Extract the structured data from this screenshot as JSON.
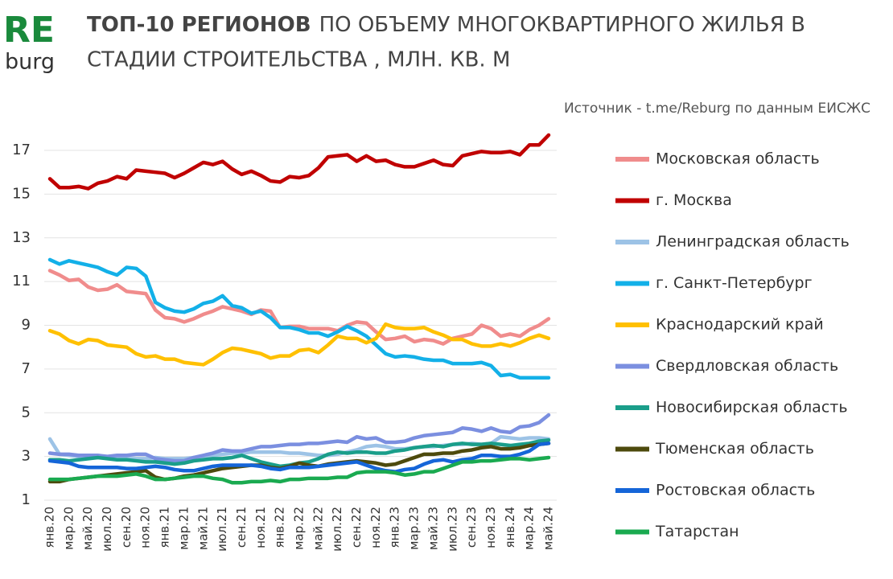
{
  "logo": {
    "top": "RE",
    "bottom": "burg"
  },
  "chart_data": {
    "type": "line",
    "title": [
      "ТОП-10 РЕГИОНОВ",
      "ПО ОБЪЕМУ МНОГОКВАРТИРНОГО ЖИЛЬЯ В",
      "СТАДИИ СТРОИТЕЛЬСТВА , МЛН. КВ. М"
    ],
    "source": "Источник - t.me/Reburg по данным ЕИСЖС",
    "categories": [
      "янв.20",
      null,
      "мар.20",
      null,
      "май.20",
      null,
      "июл.20",
      null,
      "сен.20",
      null,
      "ноя.20",
      null,
      "янв.21",
      null,
      "мар.21",
      null,
      "май.21",
      null,
      "июл.21",
      null,
      "сен.21",
      null,
      "ноя.21",
      null,
      "янв.22",
      null,
      "мар.22",
      null,
      "май.22",
      null,
      "июл.22",
      null,
      "сен.22",
      null,
      "ноя.22",
      null,
      "янв.23",
      null,
      "мар.23",
      null,
      "май.23",
      null,
      "июл.23",
      null,
      "сен.23",
      null,
      "ноя.23",
      null,
      "янв.24",
      null,
      "мар.24",
      null,
      "май.24"
    ],
    "ylim": [
      1,
      18
    ],
    "yticks": [
      1,
      3,
      5,
      7,
      9,
      11,
      13,
      15,
      17
    ],
    "grid": true,
    "legend": "right",
    "series": [
      {
        "name": "Московская область",
        "color": "#f08c8c",
        "values": [
          11.5,
          11.3,
          11.05,
          11.1,
          10.75,
          10.6,
          10.65,
          10.85,
          10.55,
          10.5,
          10.45,
          9.7,
          9.35,
          9.3,
          9.15,
          9.3,
          9.5,
          9.65,
          9.85,
          9.75,
          9.65,
          9.5,
          9.7,
          9.65,
          8.9,
          8.95,
          8.95,
          8.85,
          8.85,
          8.85,
          8.75,
          9.0,
          9.15,
          9.1,
          8.7,
          8.35,
          8.4,
          8.5,
          8.25,
          8.35,
          8.3,
          8.15,
          8.4,
          8.5,
          8.6,
          9.0,
          8.85,
          8.5,
          8.6,
          8.5,
          8.8,
          9.0,
          9.3
        ]
      },
      {
        "name": "г. Москва",
        "color": "#c00000",
        "values": [
          15.7,
          15.3,
          15.3,
          15.35,
          15.25,
          15.5,
          15.6,
          15.8,
          15.7,
          16.1,
          16.05,
          16.0,
          15.95,
          15.75,
          15.95,
          16.2,
          16.45,
          16.35,
          16.5,
          16.15,
          15.9,
          16.05,
          15.85,
          15.6,
          15.55,
          15.8,
          15.75,
          15.85,
          16.2,
          16.7,
          16.75,
          16.8,
          16.5,
          16.75,
          16.5,
          16.55,
          16.35,
          16.25,
          16.25,
          16.4,
          16.55,
          16.35,
          16.3,
          16.75,
          16.85,
          16.95,
          16.9,
          16.9,
          16.95,
          16.8,
          17.25,
          17.25,
          17.7
        ]
      },
      {
        "name": "Ленинградская область",
        "color": "#9dc3e6",
        "values": [
          3.8,
          3.1,
          3.05,
          3.0,
          3.0,
          3.0,
          2.95,
          2.95,
          2.9,
          2.9,
          2.9,
          2.95,
          2.9,
          2.9,
          2.9,
          2.95,
          3.0,
          3.05,
          3.1,
          3.15,
          3.15,
          3.2,
          3.2,
          3.2,
          3.2,
          3.15,
          3.15,
          3.1,
          3.05,
          3.05,
          3.1,
          3.2,
          3.3,
          3.45,
          3.5,
          3.45,
          3.35,
          3.35,
          3.4,
          3.45,
          3.45,
          3.5,
          3.55,
          3.55,
          3.6,
          3.55,
          3.6,
          3.9,
          3.85,
          3.8,
          3.85,
          3.85,
          3.8
        ]
      },
      {
        "name": "г. Санкт-Петербург",
        "color": "#13b0e8",
        "values": [
          12.0,
          11.8,
          11.95,
          11.85,
          11.75,
          11.65,
          11.45,
          11.3,
          11.65,
          11.6,
          11.25,
          10.05,
          9.8,
          9.65,
          9.6,
          9.75,
          10.0,
          10.1,
          10.35,
          9.9,
          9.8,
          9.55,
          9.65,
          9.35,
          8.9,
          8.9,
          8.8,
          8.65,
          8.65,
          8.5,
          8.7,
          8.95,
          8.75,
          8.5,
          8.1,
          7.7,
          7.55,
          7.6,
          7.55,
          7.45,
          7.4,
          7.4,
          7.25,
          7.25,
          7.25,
          7.3,
          7.15,
          6.7,
          6.75,
          6.6,
          6.6,
          6.6,
          6.6
        ]
      },
      {
        "name": "Краснодарский край",
        "color": "#ffc000",
        "values": [
          8.75,
          8.6,
          8.3,
          8.15,
          8.35,
          8.3,
          8.1,
          8.05,
          8.0,
          7.7,
          7.55,
          7.6,
          7.45,
          7.45,
          7.3,
          7.25,
          7.2,
          7.45,
          7.75,
          7.95,
          7.9,
          7.8,
          7.7,
          7.5,
          7.6,
          7.6,
          7.85,
          7.9,
          7.75,
          8.1,
          8.5,
          8.4,
          8.4,
          8.2,
          8.4,
          9.05,
          8.9,
          8.85,
          8.85,
          8.9,
          8.7,
          8.55,
          8.35,
          8.35,
          8.15,
          8.05,
          8.05,
          8.15,
          8.05,
          8.2,
          8.4,
          8.55,
          8.4
        ]
      },
      {
        "name": "Свердловская область",
        "color": "#7b8fe0",
        "values": [
          3.15,
          3.1,
          3.1,
          3.05,
          3.05,
          3.05,
          3.0,
          3.05,
          3.05,
          3.1,
          3.1,
          2.9,
          2.85,
          2.8,
          2.8,
          2.95,
          3.05,
          3.15,
          3.3,
          3.25,
          3.25,
          3.35,
          3.45,
          3.45,
          3.5,
          3.55,
          3.55,
          3.6,
          3.6,
          3.65,
          3.7,
          3.65,
          3.9,
          3.8,
          3.85,
          3.65,
          3.65,
          3.7,
          3.85,
          3.95,
          4.0,
          4.05,
          4.1,
          4.3,
          4.25,
          4.15,
          4.3,
          4.15,
          4.1,
          4.35,
          4.4,
          4.55,
          4.9
        ]
      },
      {
        "name": "Новосибирская область",
        "color": "#1a9e8a",
        "values": [
          2.85,
          2.85,
          2.8,
          2.85,
          2.9,
          2.95,
          2.9,
          2.85,
          2.85,
          2.8,
          2.75,
          2.75,
          2.7,
          2.65,
          2.7,
          2.8,
          2.85,
          2.9,
          2.9,
          2.95,
          3.05,
          2.9,
          2.75,
          2.65,
          2.55,
          2.6,
          2.7,
          2.75,
          2.9,
          3.1,
          3.2,
          3.15,
          3.2,
          3.2,
          3.15,
          3.15,
          3.25,
          3.3,
          3.4,
          3.45,
          3.5,
          3.45,
          3.55,
          3.6,
          3.55,
          3.55,
          3.6,
          3.55,
          3.5,
          3.55,
          3.6,
          3.7,
          3.75
        ]
      },
      {
        "name": "Тюменская область",
        "color": "#4d4a0d",
        "values": [
          1.85,
          1.85,
          1.95,
          2.0,
          2.05,
          2.1,
          2.15,
          2.2,
          2.25,
          2.3,
          2.35,
          2.05,
          1.95,
          2.0,
          2.1,
          2.15,
          2.25,
          2.35,
          2.45,
          2.5,
          2.55,
          2.6,
          2.6,
          2.5,
          2.45,
          2.55,
          2.7,
          2.6,
          2.55,
          2.65,
          2.7,
          2.75,
          2.8,
          2.75,
          2.7,
          2.6,
          2.65,
          2.8,
          2.95,
          3.1,
          3.1,
          3.15,
          3.15,
          3.25,
          3.3,
          3.4,
          3.45,
          3.35,
          3.35,
          3.4,
          3.5,
          3.55,
          3.6
        ]
      },
      {
        "name": "Ростовская область",
        "color": "#1565d8",
        "values": [
          2.8,
          2.75,
          2.7,
          2.55,
          2.5,
          2.5,
          2.5,
          2.5,
          2.45,
          2.45,
          2.5,
          2.55,
          2.5,
          2.4,
          2.35,
          2.35,
          2.45,
          2.55,
          2.6,
          2.6,
          2.6,
          2.6,
          2.55,
          2.45,
          2.4,
          2.5,
          2.5,
          2.5,
          2.55,
          2.6,
          2.65,
          2.7,
          2.75,
          2.6,
          2.45,
          2.35,
          2.3,
          2.4,
          2.45,
          2.65,
          2.8,
          2.85,
          2.75,
          2.85,
          2.9,
          3.05,
          3.05,
          3.0,
          3.0,
          3.1,
          3.25,
          3.55,
          3.6
        ]
      },
      {
        "name": "Татарстан",
        "color": "#1aaa50",
        "values": [
          1.95,
          1.95,
          1.95,
          2.0,
          2.05,
          2.1,
          2.1,
          2.1,
          2.15,
          2.2,
          2.1,
          1.95,
          1.95,
          2.0,
          2.05,
          2.1,
          2.1,
          2.0,
          1.95,
          1.8,
          1.8,
          1.85,
          1.85,
          1.9,
          1.85,
          1.95,
          1.95,
          2.0,
          2.0,
          2.0,
          2.05,
          2.05,
          2.25,
          2.3,
          2.3,
          2.3,
          2.25,
          2.15,
          2.2,
          2.3,
          2.3,
          2.45,
          2.6,
          2.75,
          2.75,
          2.8,
          2.8,
          2.85,
          2.9,
          2.9,
          2.85,
          2.9,
          2.95
        ]
      }
    ]
  }
}
